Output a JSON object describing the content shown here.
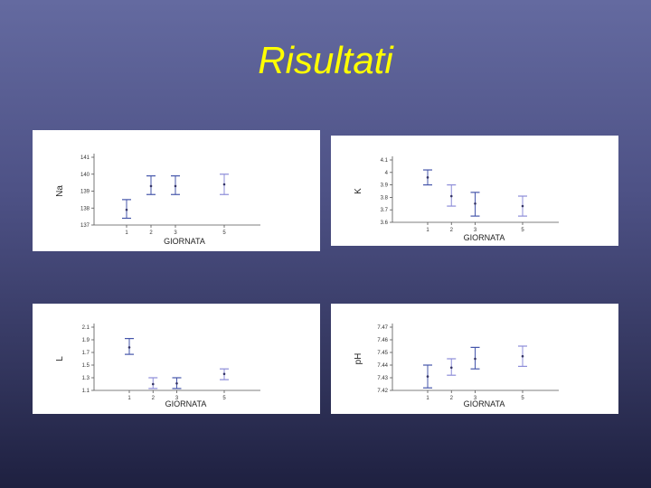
{
  "slide": {
    "title": "Risultati"
  },
  "chart_data": [
    {
      "type": "scatter",
      "subtype": "errorbar",
      "title": "",
      "xlabel": "GIORNATA",
      "ylabel": "Na",
      "x": [
        1,
        2,
        3,
        5
      ],
      "x_tick_labels": [
        "1",
        "2",
        "3",
        "5"
      ],
      "ylim": [
        137,
        141
      ],
      "yticks": [
        137,
        138,
        139,
        140,
        141
      ],
      "y_tick_labels": [
        "137",
        "138",
        "139",
        "140",
        "141"
      ],
      "mean": [
        137.9,
        139.3,
        139.3,
        139.4
      ],
      "lower": [
        137.4,
        138.8,
        138.8,
        138.8
      ],
      "upper": [
        138.5,
        139.9,
        139.9,
        140.0
      ],
      "colors": [
        "#4455aa",
        "#4455aa",
        "#4455aa",
        "#8c8cd8"
      ]
    },
    {
      "type": "scatter",
      "subtype": "errorbar",
      "title": "",
      "xlabel": "GIORNATA",
      "ylabel": "K",
      "x": [
        1,
        2,
        3,
        5
      ],
      "x_tick_labels": [
        "1",
        "2",
        "3",
        "5"
      ],
      "ylim": [
        3.6,
        4.1
      ],
      "yticks": [
        3.6,
        3.7,
        3.8,
        3.9,
        4.0,
        4.1
      ],
      "y_tick_labels": [
        "3.6",
        "3.7",
        "3.8",
        "3.9",
        "4",
        "4.1"
      ],
      "mean": [
        3.96,
        3.81,
        3.75,
        3.73
      ],
      "lower": [
        3.9,
        3.73,
        3.65,
        3.65
      ],
      "upper": [
        4.02,
        3.9,
        3.84,
        3.81
      ],
      "colors": [
        "#4455aa",
        "#8c8cd8",
        "#4455aa",
        "#8c8cd8"
      ]
    },
    {
      "type": "scatter",
      "subtype": "errorbar",
      "title": "",
      "xlabel": "GIORNATA",
      "ylabel": "L",
      "x": [
        1,
        2,
        3,
        5
      ],
      "x_tick_labels": [
        "1",
        "2",
        "3",
        "5"
      ],
      "ylim": [
        1.1,
        2.1
      ],
      "yticks": [
        1.1,
        1.3,
        1.5,
        1.7,
        1.9,
        2.1
      ],
      "y_tick_labels": [
        "1.1",
        "1.3",
        "1.5",
        "1.7",
        "1.9",
        "2.1"
      ],
      "mean": [
        1.78,
        1.2,
        1.21,
        1.36
      ],
      "lower": [
        1.67,
        1.13,
        1.13,
        1.27
      ],
      "upper": [
        1.92,
        1.3,
        1.3,
        1.44
      ],
      "colors": [
        "#4455aa",
        "#8c8cd8",
        "#4455aa",
        "#8c8cd8"
      ]
    },
    {
      "type": "scatter",
      "subtype": "errorbar",
      "title": "",
      "xlabel": "GIORNATA",
      "ylabel": "pH",
      "x": [
        1,
        2,
        3,
        5
      ],
      "x_tick_labels": [
        "1",
        "2",
        "3",
        "5"
      ],
      "ylim": [
        7.42,
        7.47
      ],
      "yticks": [
        7.42,
        7.43,
        7.44,
        7.45,
        7.46,
        7.47
      ],
      "y_tick_labels": [
        "7.42",
        "7.43",
        "7.44",
        "7.45",
        "7.46",
        "7.47"
      ],
      "mean": [
        7.431,
        7.438,
        7.445,
        7.447
      ],
      "lower": [
        7.422,
        7.432,
        7.437,
        7.439
      ],
      "upper": [
        7.44,
        7.445,
        7.454,
        7.455
      ],
      "colors": [
        "#4455aa",
        "#8c8cd8",
        "#4455aa",
        "#8c8cd8"
      ]
    }
  ]
}
